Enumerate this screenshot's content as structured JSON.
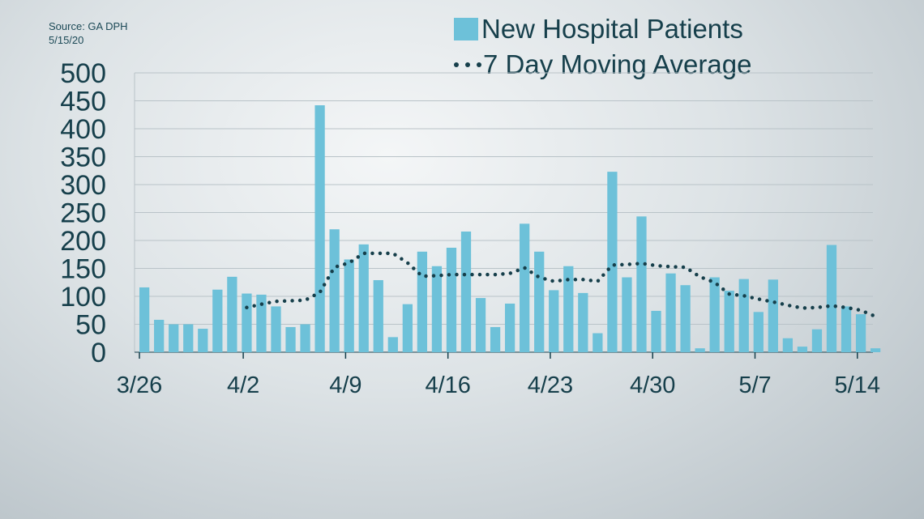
{
  "source": {
    "line1": "Source: GA DPH",
    "line2": "5/15/20"
  },
  "colors": {
    "bar": "#6dc1d9",
    "line": "#163f4b",
    "grid": "#b9c3c8",
    "text": "#163f4b"
  },
  "chart_data": {
    "type": "bar",
    "title": "",
    "xlabel": "",
    "ylabel": "",
    "ylim": [
      0,
      500
    ],
    "yticks": [
      0,
      50,
      100,
      150,
      200,
      250,
      300,
      350,
      400,
      450,
      500
    ],
    "grid": true,
    "legend_position": "top-right",
    "x_tick_labels": [
      {
        "index": 0,
        "label": "3/26"
      },
      {
        "index": 7,
        "label": "4/2"
      },
      {
        "index": 14,
        "label": "4/9"
      },
      {
        "index": 21,
        "label": "4/16"
      },
      {
        "index": 28,
        "label": "4/23"
      },
      {
        "index": 35,
        "label": "4/30"
      },
      {
        "index": 42,
        "label": "5/7"
      },
      {
        "index": 49,
        "label": "5/14"
      }
    ],
    "categories": [
      "3/26",
      "3/27",
      "3/28",
      "3/29",
      "3/30",
      "3/31",
      "4/1",
      "4/2",
      "4/3",
      "4/4",
      "4/5",
      "4/6",
      "4/7",
      "4/8",
      "4/9",
      "4/10",
      "4/11",
      "4/12",
      "4/13",
      "4/14",
      "4/15",
      "4/16",
      "4/17",
      "4/18",
      "4/19",
      "4/20",
      "4/21",
      "4/22",
      "4/23",
      "4/24",
      "4/25",
      "4/26",
      "4/27",
      "4/28",
      "4/29",
      "4/30",
      "5/1",
      "5/2",
      "5/3",
      "5/4",
      "5/5",
      "5/6",
      "5/7",
      "5/8",
      "5/9",
      "5/10",
      "5/11",
      "5/12",
      "5/13",
      "5/14",
      "5/15"
    ],
    "series": [
      {
        "name": "New Hospital Patients",
        "type": "bar",
        "values": [
          116,
          58,
          50,
          50,
          42,
          112,
          135,
          105,
          103,
          82,
          45,
          50,
          442,
          220,
          166,
          193,
          129,
          27,
          86,
          180,
          154,
          187,
          216,
          97,
          45,
          87,
          230,
          180,
          111,
          154,
          106,
          34,
          323,
          134,
          243,
          74,
          141,
          120,
          7,
          134,
          110,
          131,
          72,
          130,
          25,
          10,
          41,
          192,
          82,
          68,
          7
        ]
      },
      {
        "name": "7 Day Moving Average",
        "type": "line",
        "style": "dotted",
        "values": [
          null,
          null,
          null,
          null,
          null,
          null,
          null,
          80,
          86,
          91,
          92,
          93,
          107,
          152,
          160,
          177,
          177,
          177,
          160,
          136,
          137,
          139,
          139,
          139,
          139,
          141,
          151,
          134,
          127,
          130,
          130,
          127,
          156,
          157,
          159,
          155,
          153,
          152,
          135,
          125,
          104,
          101,
          95,
          90,
          84,
          79,
          80,
          83,
          80,
          75,
          64
        ]
      }
    ]
  }
}
